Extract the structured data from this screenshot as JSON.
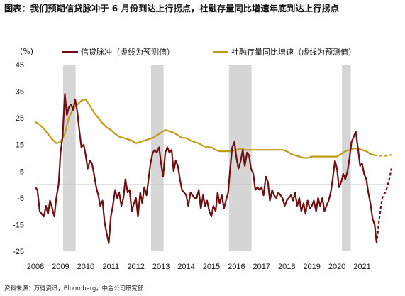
{
  "title": "图表：我们预期信贷脉冲于 6 月份到达上行拐点，社融存量同比增速年底到达上行拐点",
  "source": "资料来源：万得资讯，Bloomberg，中金公司研究部",
  "colors": {
    "credit": "#6e0f12",
    "social": "#c49a14",
    "recession": "#d6d6d6",
    "zero": "#b3b3b3"
  },
  "chart_data": {
    "type": "line",
    "unit_label": "(%)",
    "x_axis": {
      "range": [
        2008.0,
        2022.2
      ],
      "ticks": [
        "2008",
        "2009",
        "2010",
        "2011",
        "2012",
        "2013",
        "2014",
        "2015",
        "2016",
        "2017",
        "2018",
        "2019",
        "2020",
        "2021"
      ]
    },
    "y_axis": {
      "range": [
        -25,
        45
      ],
      "ticks": [
        -25,
        -15,
        -5,
        5,
        15,
        25,
        35,
        45
      ]
    },
    "shaded_periods": [
      [
        2009.1,
        2009.6
      ],
      [
        2012.6,
        2013.1
      ],
      [
        2015.7,
        2016.6
      ],
      [
        2020.2,
        2020.55
      ]
    ],
    "legend": {
      "position": "top"
    },
    "series": [
      {
        "name": "信贷脉冲（虚线为预测值）",
        "color": "#6e0f12",
        "actual": [
          [
            2008.0,
            -1
          ],
          [
            2008.08,
            -2
          ],
          [
            2008.17,
            -10
          ],
          [
            2008.25,
            -11
          ],
          [
            2008.33,
            -12
          ],
          [
            2008.42,
            -8
          ],
          [
            2008.5,
            -11
          ],
          [
            2008.58,
            -6
          ],
          [
            2008.67,
            -9
          ],
          [
            2008.75,
            -12
          ],
          [
            2008.83,
            -5
          ],
          [
            2008.92,
            0
          ],
          [
            2009.0,
            12
          ],
          [
            2009.08,
            18
          ],
          [
            2009.17,
            34
          ],
          [
            2009.25,
            26
          ],
          [
            2009.33,
            29
          ],
          [
            2009.42,
            30
          ],
          [
            2009.5,
            28
          ],
          [
            2009.58,
            32
          ],
          [
            2009.67,
            27
          ],
          [
            2009.75,
            20
          ],
          [
            2009.83,
            14
          ],
          [
            2009.92,
            15
          ],
          [
            2010.0,
            11
          ],
          [
            2010.08,
            6
          ],
          [
            2010.17,
            9
          ],
          [
            2010.25,
            8
          ],
          [
            2010.33,
            4
          ],
          [
            2010.42,
            -1
          ],
          [
            2010.5,
            -4
          ],
          [
            2010.58,
            -8
          ],
          [
            2010.67,
            -6
          ],
          [
            2010.75,
            -14
          ],
          [
            2010.83,
            -18
          ],
          [
            2010.92,
            -22
          ],
          [
            2011.0,
            -12
          ],
          [
            2011.08,
            -8
          ],
          [
            2011.17,
            -2
          ],
          [
            2011.25,
            -5
          ],
          [
            2011.33,
            -3
          ],
          [
            2011.42,
            -8
          ],
          [
            2011.5,
            -5
          ],
          [
            2011.58,
            2
          ],
          [
            2011.67,
            -3
          ],
          [
            2011.75,
            -2
          ],
          [
            2011.83,
            -10
          ],
          [
            2011.92,
            -7
          ],
          [
            2012.0,
            -5
          ],
          [
            2012.08,
            -12
          ],
          [
            2012.17,
            -3
          ],
          [
            2012.25,
            -7
          ],
          [
            2012.33,
            -1
          ],
          [
            2012.42,
            -4
          ],
          [
            2012.5,
            2
          ],
          [
            2012.58,
            8
          ],
          [
            2012.67,
            12
          ],
          [
            2012.75,
            13
          ],
          [
            2012.83,
            12
          ],
          [
            2012.92,
            14
          ],
          [
            2013.0,
            8
          ],
          [
            2013.08,
            3
          ],
          [
            2013.17,
            12
          ],
          [
            2013.25,
            14
          ],
          [
            2013.33,
            12
          ],
          [
            2013.42,
            13
          ],
          [
            2013.5,
            5
          ],
          [
            2013.58,
            9
          ],
          [
            2013.67,
            7
          ],
          [
            2013.75,
            2
          ],
          [
            2013.83,
            -2
          ],
          [
            2013.92,
            -3
          ],
          [
            2014.0,
            -4
          ],
          [
            2014.08,
            -8
          ],
          [
            2014.17,
            -3
          ],
          [
            2014.25,
            -4
          ],
          [
            2014.33,
            -5
          ],
          [
            2014.42,
            -5
          ],
          [
            2014.5,
            -2
          ],
          [
            2014.58,
            -9
          ],
          [
            2014.67,
            -4
          ],
          [
            2014.75,
            -8
          ],
          [
            2014.83,
            -6
          ],
          [
            2014.92,
            -10
          ],
          [
            2015.0,
            -12
          ],
          [
            2015.08,
            -8
          ],
          [
            2015.17,
            -10
          ],
          [
            2015.25,
            -3
          ],
          [
            2015.33,
            -7
          ],
          [
            2015.42,
            -4
          ],
          [
            2015.5,
            -9
          ],
          [
            2015.58,
            -6
          ],
          [
            2015.67,
            -3
          ],
          [
            2015.75,
            6
          ],
          [
            2015.83,
            14
          ],
          [
            2015.92,
            16
          ],
          [
            2016.0,
            10
          ],
          [
            2016.08,
            6
          ],
          [
            2016.17,
            9
          ],
          [
            2016.25,
            13
          ],
          [
            2016.33,
            7
          ],
          [
            2016.42,
            12
          ],
          [
            2016.5,
            11
          ],
          [
            2016.58,
            6
          ],
          [
            2016.67,
            4
          ],
          [
            2016.75,
            -2
          ],
          [
            2016.83,
            -1
          ],
          [
            2016.92,
            -2
          ],
          [
            2017.0,
            -1
          ],
          [
            2017.08,
            -4
          ],
          [
            2017.17,
            3
          ],
          [
            2017.25,
            1
          ],
          [
            2017.33,
            -6
          ],
          [
            2017.42,
            -2
          ],
          [
            2017.5,
            -4
          ],
          [
            2017.58,
            -5
          ],
          [
            2017.67,
            -3
          ],
          [
            2017.75,
            -4
          ],
          [
            2017.83,
            -5
          ],
          [
            2017.92,
            -8
          ],
          [
            2018.0,
            -6
          ],
          [
            2018.08,
            -5
          ],
          [
            2018.17,
            -4
          ],
          [
            2018.25,
            -6
          ],
          [
            2018.33,
            -3
          ],
          [
            2018.42,
            -8
          ],
          [
            2018.5,
            -5
          ],
          [
            2018.58,
            -10
          ],
          [
            2018.67,
            -7
          ],
          [
            2018.75,
            -11
          ],
          [
            2018.83,
            -6
          ],
          [
            2018.92,
            -9
          ],
          [
            2019.0,
            -8
          ],
          [
            2019.08,
            -6
          ],
          [
            2019.17,
            -10
          ],
          [
            2019.25,
            -5
          ],
          [
            2019.33,
            -8
          ],
          [
            2019.42,
            -5
          ],
          [
            2019.5,
            -10
          ],
          [
            2019.58,
            -8
          ],
          [
            2019.67,
            -6
          ],
          [
            2019.75,
            -3
          ],
          [
            2019.83,
            2
          ],
          [
            2019.92,
            9
          ],
          [
            2020.0,
            6
          ],
          [
            2020.08,
            -1
          ],
          [
            2020.17,
            1
          ],
          [
            2020.25,
            4
          ],
          [
            2020.33,
            2
          ],
          [
            2020.42,
            5
          ],
          [
            2020.5,
            10
          ],
          [
            2020.58,
            16
          ],
          [
            2020.67,
            18
          ],
          [
            2020.75,
            20
          ],
          [
            2020.83,
            14
          ],
          [
            2020.92,
            7
          ],
          [
            2021.0,
            8
          ],
          [
            2021.08,
            4
          ],
          [
            2021.17,
            2
          ],
          [
            2021.25,
            -3
          ],
          [
            2021.33,
            -7
          ],
          [
            2021.42,
            -13
          ],
          [
            2021.5,
            -15
          ],
          [
            2021.58,
            -22
          ]
        ],
        "forecast": [
          [
            2021.58,
            -22
          ],
          [
            2021.67,
            -14
          ],
          [
            2021.75,
            -8
          ],
          [
            2021.83,
            -4
          ],
          [
            2021.92,
            -3
          ],
          [
            2022.0,
            -1
          ],
          [
            2022.08,
            2
          ],
          [
            2022.17,
            6
          ]
        ]
      },
      {
        "name": "社融存量同比增速（虚线为预测值）",
        "color": "#c49a14",
        "actual": [
          [
            2008.0,
            23.5
          ],
          [
            2008.17,
            22.5
          ],
          [
            2008.33,
            21
          ],
          [
            2008.5,
            19
          ],
          [
            2008.67,
            17
          ],
          [
            2008.83,
            15.5
          ],
          [
            2009.0,
            16
          ],
          [
            2009.17,
            19
          ],
          [
            2009.33,
            25
          ],
          [
            2009.5,
            28.5
          ],
          [
            2009.67,
            30
          ],
          [
            2009.83,
            31.5
          ],
          [
            2010.0,
            32
          ],
          [
            2010.17,
            29.5
          ],
          [
            2010.33,
            27
          ],
          [
            2010.5,
            25
          ],
          [
            2010.67,
            23
          ],
          [
            2010.83,
            21.5
          ],
          [
            2011.0,
            20.5
          ],
          [
            2011.17,
            19
          ],
          [
            2011.33,
            18
          ],
          [
            2011.5,
            17.5
          ],
          [
            2011.67,
            17
          ],
          [
            2011.83,
            16.5
          ],
          [
            2012.0,
            15.5
          ],
          [
            2012.17,
            16
          ],
          [
            2012.33,
            16.5
          ],
          [
            2012.5,
            17
          ],
          [
            2012.67,
            17.5
          ],
          [
            2012.83,
            18.5
          ],
          [
            2013.0,
            19.5
          ],
          [
            2013.17,
            20.5
          ],
          [
            2013.33,
            20
          ],
          [
            2013.5,
            19.5
          ],
          [
            2013.67,
            18.5
          ],
          [
            2013.83,
            17.5
          ],
          [
            2014.0,
            17.5
          ],
          [
            2014.17,
            16.5
          ],
          [
            2014.33,
            16
          ],
          [
            2014.5,
            15.5
          ],
          [
            2014.67,
            14.5
          ],
          [
            2014.83,
            14
          ],
          [
            2015.0,
            14
          ],
          [
            2015.17,
            13
          ],
          [
            2015.33,
            12.5
          ],
          [
            2015.5,
            12.5
          ],
          [
            2015.67,
            12.5
          ],
          [
            2015.83,
            12.5
          ],
          [
            2016.0,
            13
          ],
          [
            2016.17,
            13.5
          ],
          [
            2016.33,
            13
          ],
          [
            2016.5,
            13
          ],
          [
            2016.67,
            13
          ],
          [
            2016.83,
            13
          ],
          [
            2017.0,
            13
          ],
          [
            2017.17,
            13
          ],
          [
            2017.33,
            13
          ],
          [
            2017.5,
            13
          ],
          [
            2017.67,
            13
          ],
          [
            2017.83,
            13
          ],
          [
            2018.0,
            12.5
          ],
          [
            2018.17,
            11.5
          ],
          [
            2018.33,
            11
          ],
          [
            2018.5,
            10.5
          ],
          [
            2018.67,
            10
          ],
          [
            2018.83,
            10
          ],
          [
            2019.0,
            10.5
          ],
          [
            2019.17,
            10.5
          ],
          [
            2019.33,
            10.5
          ],
          [
            2019.5,
            10.5
          ],
          [
            2019.67,
            10.5
          ],
          [
            2019.83,
            10.5
          ],
          [
            2020.0,
            10.5
          ],
          [
            2020.17,
            11.5
          ],
          [
            2020.33,
            12.5
          ],
          [
            2020.5,
            13
          ],
          [
            2020.67,
            13.5
          ],
          [
            2020.83,
            13.5
          ],
          [
            2021.0,
            13
          ],
          [
            2021.17,
            12.5
          ],
          [
            2021.33,
            11.5
          ],
          [
            2021.5,
            11
          ]
        ],
        "forecast": [
          [
            2021.5,
            11
          ],
          [
            2021.67,
            10.8
          ],
          [
            2021.83,
            10.8
          ],
          [
            2022.0,
            10.8
          ],
          [
            2022.17,
            11.2
          ]
        ]
      }
    ]
  }
}
